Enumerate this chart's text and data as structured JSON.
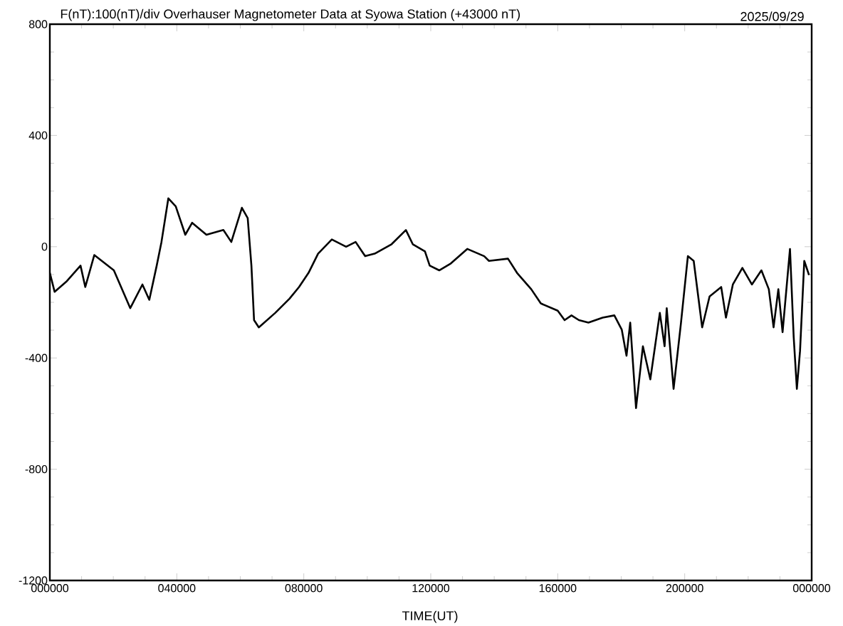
{
  "chart_data": {
    "type": "line",
    "title": "F(nT):100(nT)/div  Overhauser Magnetometer Data at Syowa Station (+43000 nT)",
    "xlabel": "TIME(UT)",
    "annotations": [
      "2025/09/29"
    ],
    "xlim": [
      "2025-09-29T00:00",
      "2025-09-30T00:00"
    ],
    "ylim": [
      -1200,
      800
    ],
    "xticks": [
      {
        "value": "2025-09-29T00:00",
        "label": "000000"
      },
      {
        "value": "2025-09-29T04:00",
        "label": "040000"
      },
      {
        "value": "2025-09-29T08:00",
        "label": "080000"
      },
      {
        "value": "2025-09-29T12:00",
        "label": "120000"
      },
      {
        "value": "2025-09-29T16:00",
        "label": "160000"
      },
      {
        "value": "2025-09-29T20:00",
        "label": "200000"
      },
      {
        "value": "2025-09-30T00:00",
        "label": "000000"
      }
    ],
    "yticks": [
      -1200,
      -800,
      -400,
      0,
      400,
      800
    ],
    "marker": "none",
    "line_style": "solid",
    "series": [
      {
        "color": "#000000",
        "x": [
          "2025-09-29T00:00",
          "2025-09-29T00:09",
          "2025-09-29T00:31",
          "2025-09-29T00:58",
          "2025-09-29T01:07",
          "2025-09-29T01:24",
          "2025-09-29T02:01",
          "2025-09-29T02:32",
          "2025-09-29T02:55",
          "2025-09-29T03:08",
          "2025-09-29T03:22",
          "2025-09-29T03:31",
          "2025-09-29T03:44",
          "2025-09-29T03:58",
          "2025-09-29T04:16",
          "2025-09-29T04:29",
          "2025-09-29T04:56",
          "2025-09-29T05:28",
          "2025-09-29T05:43",
          "2025-09-29T06:03",
          "2025-09-29T06:14",
          "2025-09-29T06:21",
          "2025-09-29T06:26",
          "2025-09-29T06:35",
          "2025-09-29T07:06",
          "2025-09-29T07:33",
          "2025-09-29T07:51",
          "2025-09-29T08:09",
          "2025-09-29T08:27",
          "2025-09-29T08:53",
          "2025-09-29T09:20",
          "2025-09-29T09:38",
          "2025-09-29T09:56",
          "2025-09-29T10:14",
          "2025-09-29T10:46",
          "2025-09-29T11:13",
          "2025-09-29T11:26",
          "2025-09-29T11:49",
          "2025-09-29T11:58",
          "2025-09-29T12:16",
          "2025-09-29T12:38",
          "2025-09-29T13:09",
          "2025-09-29T13:41",
          "2025-09-29T13:50",
          "2025-09-29T14:26",
          "2025-09-29T14:43",
          "2025-09-29T15:10",
          "2025-09-29T15:28",
          "2025-09-29T16:00",
          "2025-09-29T16:13",
          "2025-09-29T16:26",
          "2025-09-29T16:40",
          "2025-09-29T16:58",
          "2025-09-29T17:25",
          "2025-09-29T17:47",
          "2025-09-29T18:01",
          "2025-09-29T18:10",
          "2025-09-29T18:17",
          "2025-09-29T18:28",
          "2025-09-29T18:41",
          "2025-09-29T18:55",
          "2025-09-29T19:13",
          "2025-09-29T19:22",
          "2025-09-29T19:26",
          "2025-09-29T19:39",
          "2025-09-29T19:53",
          "2025-09-29T20:06",
          "2025-09-29T20:17",
          "2025-09-29T20:33",
          "2025-09-29T20:47",
          "2025-09-29T21:09",
          "2025-09-29T21:18",
          "2025-09-29T21:31",
          "2025-09-29T21:49",
          "2025-09-29T22:07",
          "2025-09-29T22:25",
          "2025-09-29T22:39",
          "2025-09-29T22:48",
          "2025-09-29T22:57",
          "2025-09-29T23:05",
          "2025-09-29T23:19",
          "2025-09-29T23:26",
          "2025-09-29T23:32",
          "2025-09-29T23:38",
          "2025-09-29T23:46",
          "2025-09-29T23:55"
        ],
        "values": [
          -94,
          -162,
          -126,
          -68,
          -145,
          -30,
          -85,
          -221,
          -136,
          -191,
          -68,
          17,
          174,
          145,
          43,
          86,
          43,
          60,
          17,
          140,
          103,
          -68,
          -264,
          -290,
          -238,
          -187,
          -145,
          -94,
          -25,
          26,
          0,
          17,
          -34,
          -25,
          9,
          60,
          9,
          -17,
          -68,
          -85,
          -60,
          -8,
          -34,
          -51,
          -43,
          -94,
          -153,
          -204,
          -230,
          -264,
          -247,
          -264,
          -273,
          -255,
          -247,
          -298,
          -392,
          -273,
          -580,
          -358,
          -477,
          -238,
          -358,
          -221,
          -511,
          -273,
          -34,
          -51,
          -290,
          -179,
          -145,
          -255,
          -136,
          -76,
          -136,
          -85,
          -153,
          -290,
          -153,
          -307,
          -8,
          -324,
          -511,
          -375,
          -51,
          -102
        ]
      }
    ]
  }
}
